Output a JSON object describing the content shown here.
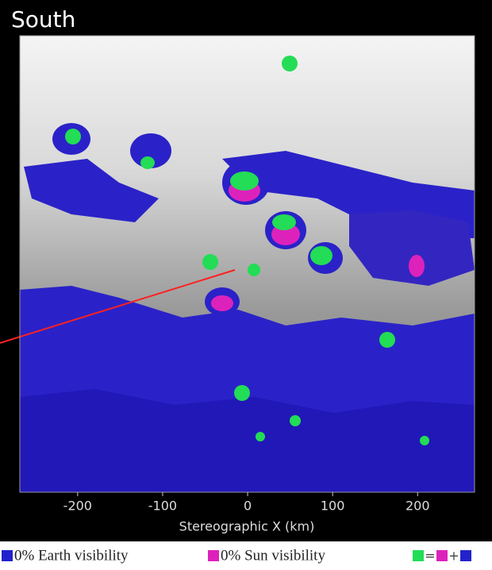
{
  "title": "South",
  "map": {
    "xaxis": {
      "label": "Stereographic X (km)",
      "xlim": [
        -268,
        267
      ],
      "xticks": [
        -200,
        -100,
        0,
        100,
        200
      ]
    }
  },
  "legend": {
    "items": [
      {
        "label": "0% Earth visibility",
        "color": "#2222cc"
      },
      {
        "label": "0% Sun visibility",
        "color": "#dd22bb"
      }
    ],
    "equation": {
      "symbols": [
        "=",
        "+"
      ],
      "colors": [
        "#22dd55",
        "#dd22bb",
        "#2222cc"
      ]
    }
  }
}
